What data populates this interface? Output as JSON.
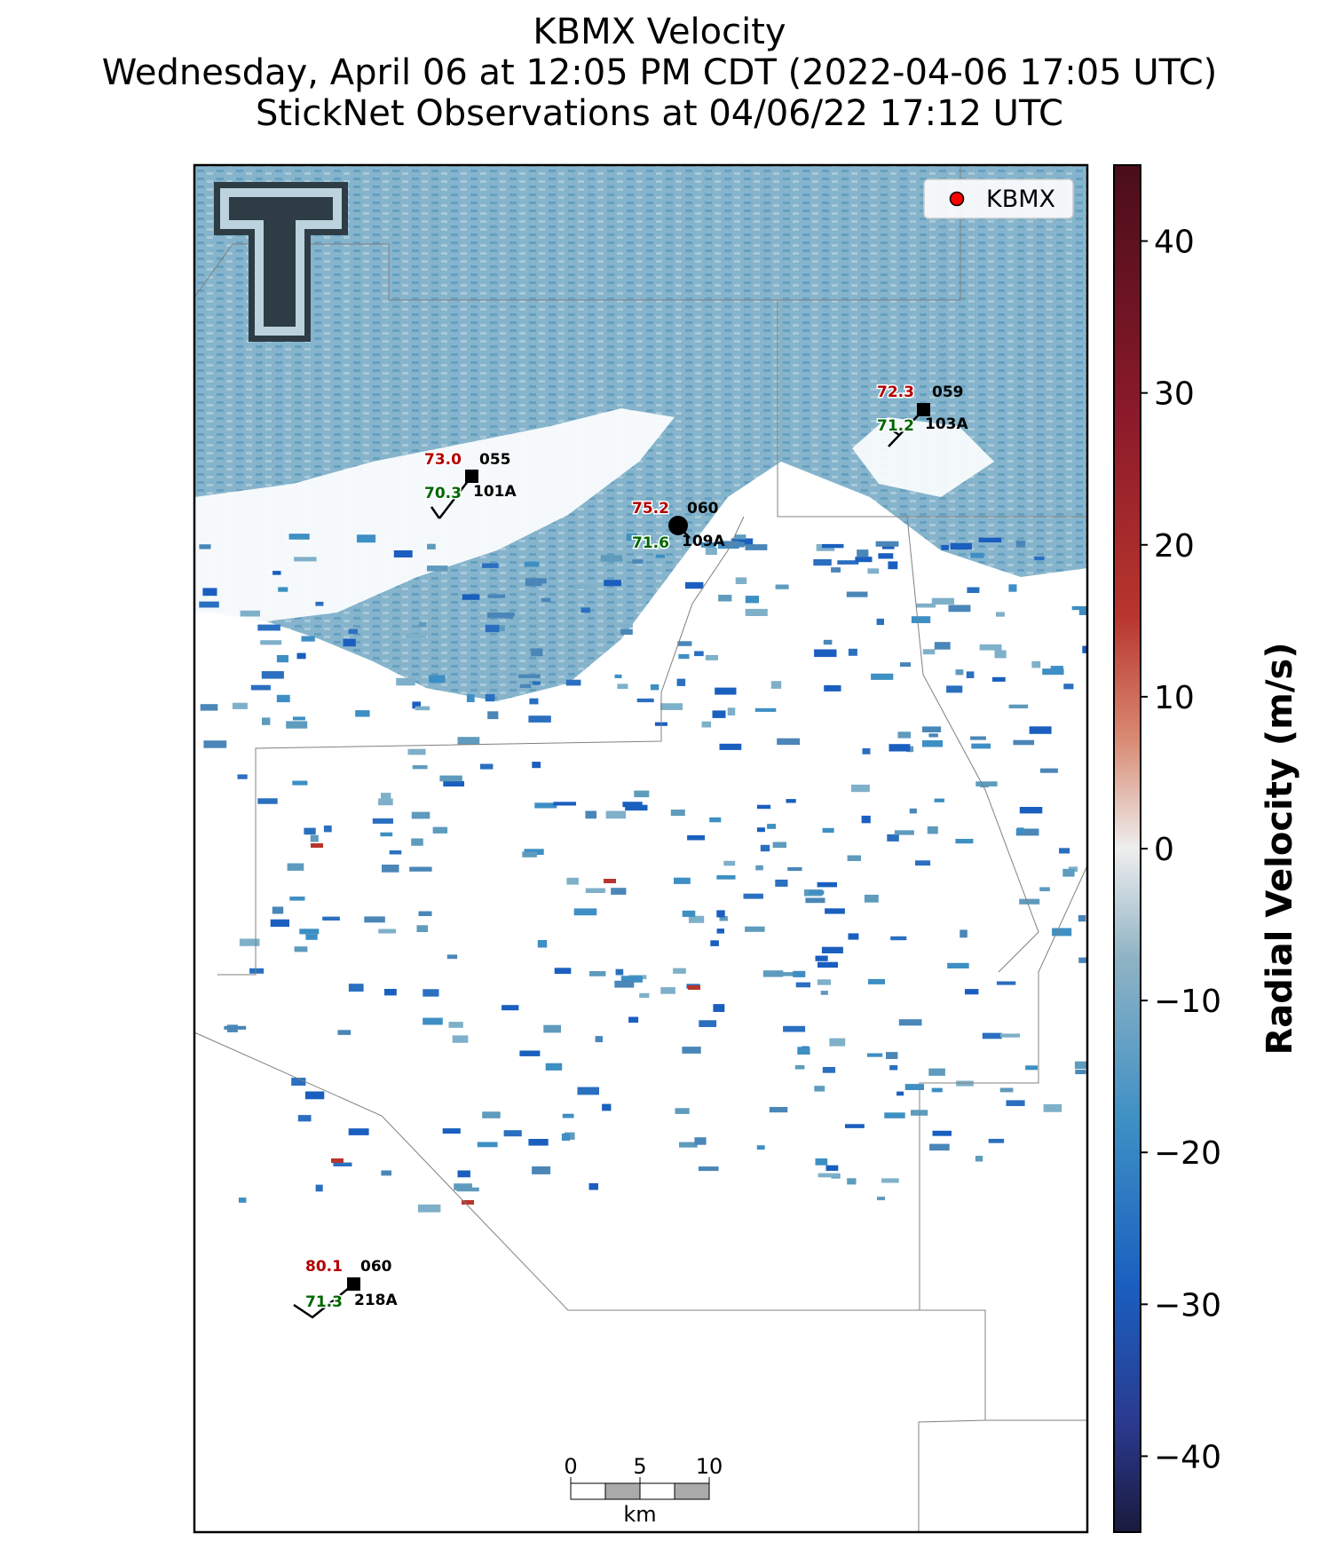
{
  "title": {
    "line1": "KBMX Velocity",
    "line2": "Wednesday, April 06 at 12:05 PM CDT (2022-04-06 17:05 UTC)",
    "line3": "StickNet Observations at 04/06/22 17:12 UTC"
  },
  "legend": {
    "label": "KBMX",
    "marker_color": "#ff0000"
  },
  "colorbar": {
    "label": "Radial Velocity (m/s)",
    "range": [
      -45,
      45
    ],
    "ticks": [
      "40",
      "30",
      "20",
      "10",
      "0",
      "−10",
      "−20",
      "−30",
      "−40"
    ],
    "colors": {
      "max": "#4a0d1a",
      "high": "#b8352d",
      "mid_high": "#d98a72",
      "zero": "#eeeeee",
      "mid_low": "#8fb3c4",
      "low": "#3d8fc4",
      "lower": "#1a5fbf",
      "min": "#1a1a3d"
    }
  },
  "scale_bar": {
    "ticks": [
      "0",
      "5",
      "10"
    ],
    "unit": "km"
  },
  "stations": [
    {
      "id": "101A",
      "temp": "73.0",
      "dew": "70.3",
      "dir": "055"
    },
    {
      "id": "109A",
      "temp": "75.2",
      "dew": "71.6",
      "dir": "060"
    },
    {
      "id": "103A",
      "temp": "72.3",
      "dew": "71.2",
      "dir": "059"
    },
    {
      "id": "218A",
      "temp": "80.1",
      "dew": "71.3",
      "dir": "060"
    }
  ],
  "logo": {
    "text": "T"
  },
  "colors": {
    "temp": "#b30000",
    "dew": "#006600",
    "velocity_field": "#6aa3c2"
  }
}
